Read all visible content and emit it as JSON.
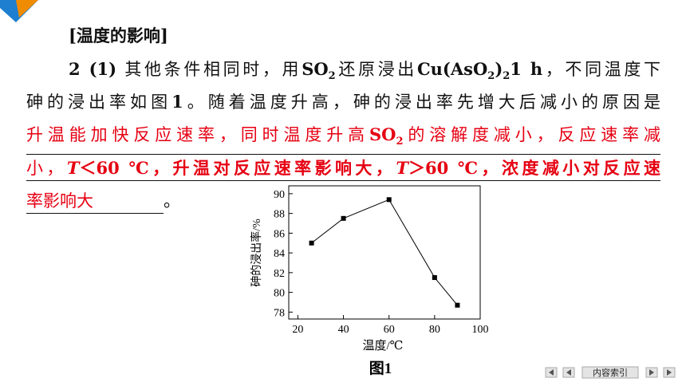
{
  "heading": "[温度的影响]",
  "question": {
    "lines": [
      [
        "2 (1)",
        " 其他条件相同时，用",
        "SO",
        "2",
        "还原浸出",
        "Cu(AsO",
        "2",
        ")",
        "2",
        "1 h",
        "，不同温度下"
      ],
      [
        "砷的浸出率如图",
        "1",
        "。随着温度升高，砷的浸出率先增大后减小的原因是"
      ]
    ]
  },
  "answer": {
    "lines": [
      [
        "升温能加快反应速率，同时温度升高",
        "SO",
        "2",
        "的溶解度减小，反应速率减"
      ],
      [
        "小，",
        "T",
        "＜60 ℃，升温对反应速率影响大，",
        "T",
        "＞60 ℃，浓度减小对反应速"
      ],
      [
        "率影响大"
      ]
    ],
    "end": "。"
  },
  "chart_data": {
    "type": "line",
    "x_label": "温度/℃",
    "y_label": "砷的浸出率/%",
    "caption": "图1",
    "x": [
      26,
      40,
      60,
      80,
      90
    ],
    "values": [
      85,
      87.5,
      89.4,
      81.5,
      78.7
    ],
    "color": "#000000",
    "xlim": [
      16,
      100
    ],
    "ylim": [
      77.3,
      90.8
    ],
    "xticks": [
      20,
      40,
      60,
      80,
      100
    ],
    "yticks": [
      78,
      80,
      82,
      84,
      86,
      88,
      90
    ]
  },
  "nav": {
    "index": "内容索引"
  }
}
